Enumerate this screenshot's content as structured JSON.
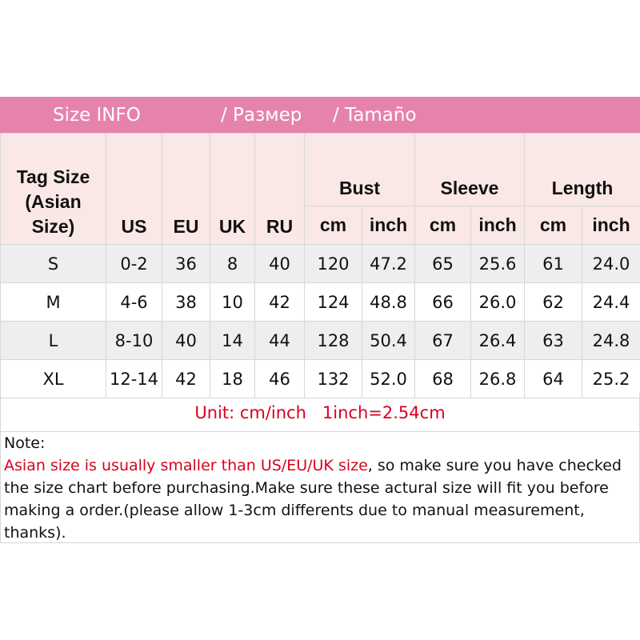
{
  "banner": {
    "en": "Size INFO",
    "ru": "/  Размер",
    "es": "/  Tamaño"
  },
  "header": {
    "tag": [
      "Tag Size",
      "(Asian",
      "Size)"
    ],
    "us": "US",
    "eu": "EU",
    "uk": "UK",
    "ru": "RU",
    "bust": "Bust",
    "sleeve": "Sleeve",
    "length": "Length",
    "cm": "cm",
    "inch": "inch"
  },
  "rows": [
    [
      "S",
      "0-2",
      "36",
      "8",
      "40",
      "120",
      "47.2",
      "65",
      "25.6",
      "61",
      "24.0"
    ],
    [
      "M",
      "4-6",
      "38",
      "10",
      "42",
      "124",
      "48.8",
      "66",
      "26.0",
      "62",
      "24.4"
    ],
    [
      "L",
      "8-10",
      "40",
      "14",
      "44",
      "128",
      "50.4",
      "67",
      "26.4",
      "63",
      "24.8"
    ],
    [
      "XL",
      "12-14",
      "42",
      "18",
      "46",
      "132",
      "52.0",
      "68",
      "26.8",
      "64",
      "25.2"
    ]
  ],
  "unit": "Unit: cm/inch   1inch=2.54cm",
  "note": {
    "title": "Note:",
    "red": "Asian size is usually smaller than US/EU/UK size",
    "rest": ", so make sure you have checked the size chart before purchasing.Make sure these actural size will fit you before making a order.(please allow 1-3cm differents due to manual measurement, thanks)."
  },
  "colors": {
    "banner": "#e683ac",
    "header_bg": "#f9e8e6",
    "stripe": "#eeeeee",
    "red": "#d8001c"
  }
}
